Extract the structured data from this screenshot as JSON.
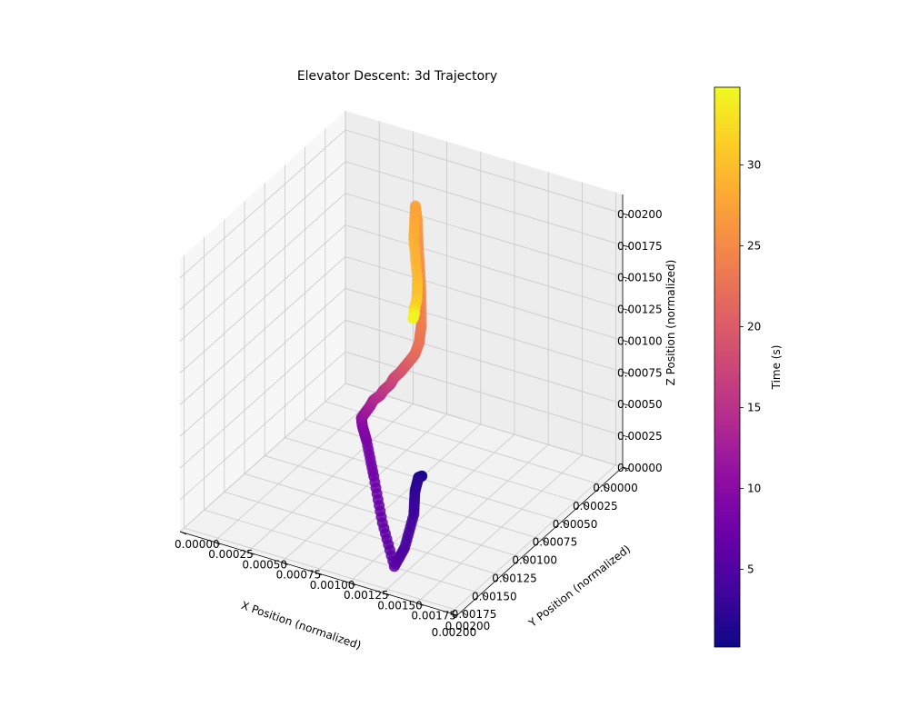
{
  "chart_data": {
    "type": "scatter",
    "projection": "3d",
    "title": "Elevator Descent: 3d Trajectory",
    "xlabel": "X Position (normalized)",
    "ylabel": "Y Position (normalized)",
    "zlabel": "Z Position (normalized)",
    "xlim": [
      0,
      0.00205
    ],
    "ylim": [
      0,
      0.00205
    ],
    "zlim": [
      0,
      0.00215
    ],
    "x_ticks": [
      "0.00000",
      "0.00025",
      "0.00050",
      "0.00075",
      "0.00100",
      "0.00125",
      "0.00150",
      "0.00175",
      "0.00200"
    ],
    "y_ticks": [
      "0.00000",
      "0.00025",
      "0.00050",
      "0.00075",
      "0.00100",
      "0.00125",
      "0.00150",
      "0.00175",
      "0.00200"
    ],
    "z_ticks": [
      "0.00000",
      "0.00025",
      "0.00050",
      "0.00075",
      "0.00100",
      "0.00125",
      "0.00150",
      "0.00175",
      "0.00200"
    ],
    "grid": true,
    "colormap": "plasma",
    "colorbar": {
      "label": "Time (s)",
      "range": [
        0.2,
        34.8
      ],
      "ticks": [
        "5",
        "10",
        "15",
        "20",
        "25",
        "30"
      ]
    },
    "series": [
      {
        "t": [
          0.3,
          1.5,
          2.5,
          3.5,
          4.5,
          5.5,
          6.5,
          7.5,
          8.5,
          9.5,
          10.5,
          11.5,
          12.5,
          13.5,
          14.5,
          15.5,
          16.5,
          17.5,
          18.5,
          19.5,
          20.5,
          21.5,
          22.5,
          23.5,
          24.5,
          25.5,
          26.5,
          27.5,
          28.5,
          29.5,
          30.5,
          31.5,
          32.5,
          33.5,
          34.5
        ],
        "x": [
          0.0019,
          0.00186,
          0.00182,
          0.0018,
          0.00178,
          0.00174,
          0.00172,
          0.00166,
          0.00158,
          0.0015,
          0.00141,
          0.00133,
          0.00124,
          0.00116,
          0.00108,
          0.001,
          0.00092,
          0.00084,
          0.00076,
          0.00068,
          0.0006,
          0.00053,
          0.00046,
          0.0004,
          0.00034,
          0.0003,
          0.00025,
          0.00024,
          0.00026,
          0.00028,
          0.00022,
          0.00018,
          0.00015,
          0.00012,
          0.0001
        ],
        "y": [
          0.0017,
          0.00165,
          0.0016,
          0.00158,
          0.0015,
          0.0014,
          0.0013,
          0.0012,
          0.0011,
          0.00102,
          0.00096,
          0.00094,
          0.00092,
          0.0009,
          0.0009,
          0.00088,
          0.00088,
          0.00086,
          0.00086,
          0.00085,
          0.00084,
          0.00083,
          0.00082,
          0.0008,
          0.00076,
          0.00072,
          0.00068,
          0.00066,
          0.00066,
          0.0007,
          0.00066,
          0.00062,
          0.0006,
          0.00058,
          0.00056
        ],
        "z": [
          0.0009,
          0.00085,
          0.0007,
          0.0005,
          0.0002,
          0.0,
          0.0003,
          0.0006,
          0.0008,
          0.00085,
          0.00084,
          0.00083,
          0.00082,
          0.00082,
          0.00081,
          0.0008,
          0.0008,
          0.0008,
          0.0008,
          0.0008,
          0.0008,
          0.0008,
          0.00085,
          0.00095,
          0.0012,
          0.00145,
          0.00165,
          0.00175,
          0.0015,
          0.0012,
          0.001,
          0.0009,
          0.00085,
          0.0008,
          0.00075
        ]
      }
    ]
  }
}
